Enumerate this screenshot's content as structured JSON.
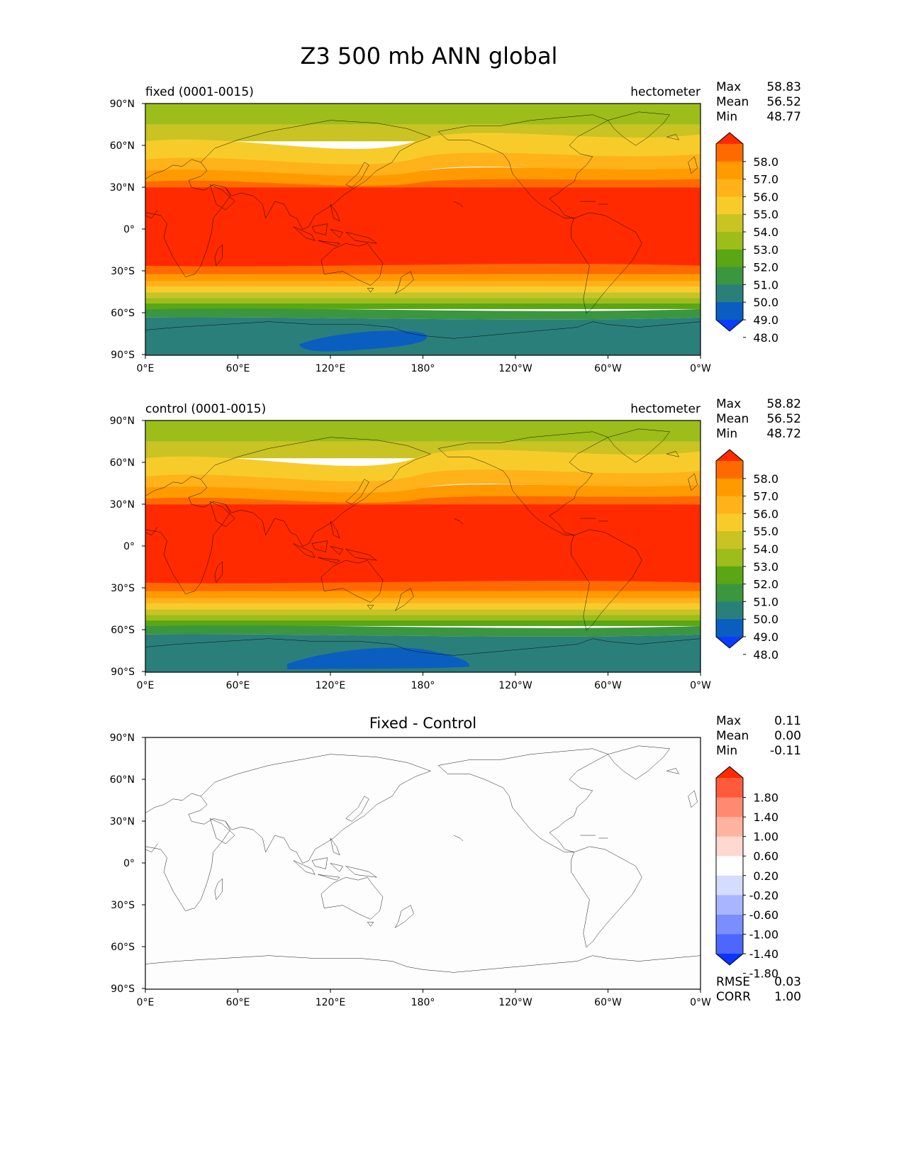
{
  "title": "Z3 500 mb ANN global",
  "axes": {
    "lat_ticks": [
      "90°N",
      "60°N",
      "30°N",
      "0°",
      "30°S",
      "60°S",
      "90°S"
    ],
    "lon_ticks": [
      "0°E",
      "60°E",
      "120°E",
      "180°",
      "120°W",
      "60°W",
      "0°W"
    ]
  },
  "panels": [
    {
      "label": "fixed (0001-0015)",
      "units": "hectometer",
      "stats": [
        {
          "name": "Max",
          "value": "58.83"
        },
        {
          "name": "Mean",
          "value": "56.52"
        },
        {
          "name": "Min",
          "value": "48.77"
        }
      ],
      "colorbar": {
        "labels": [
          "58.0",
          "57.0",
          "56.0",
          "55.0",
          "54.0",
          "53.0",
          "52.0",
          "51.0",
          "50.0",
          "49.0",
          "48.0"
        ],
        "colors": [
          "#ff2a00",
          "#ff6a00",
          "#ff9a00",
          "#ffb21a",
          "#f7cc2a",
          "#c9c323",
          "#9dbd1a",
          "#5aa614",
          "#3b9640",
          "#2b7f7a",
          "#0a5ec0",
          "#0a3cff"
        ]
      }
    },
    {
      "label": "control (0001-0015)",
      "units": "hectometer",
      "stats": [
        {
          "name": "Max",
          "value": "58.82"
        },
        {
          "name": "Mean",
          "value": "56.52"
        },
        {
          "name": "Min",
          "value": "48.72"
        }
      ],
      "colorbar": {
        "labels": [
          "58.0",
          "57.0",
          "56.0",
          "55.0",
          "54.0",
          "53.0",
          "52.0",
          "51.0",
          "50.0",
          "49.0",
          "48.0"
        ],
        "colors": [
          "#ff2a00",
          "#ff6a00",
          "#ff9a00",
          "#ffb21a",
          "#f7cc2a",
          "#c9c323",
          "#9dbd1a",
          "#5aa614",
          "#3b9640",
          "#2b7f7a",
          "#0a5ec0",
          "#0a3cff"
        ]
      }
    },
    {
      "label": "Fixed - Control",
      "units": "",
      "stats": [
        {
          "name": "Max",
          "value": "0.11"
        },
        {
          "name": "Mean",
          "value": "0.00"
        },
        {
          "name": "Min",
          "value": "-0.11"
        }
      ],
      "colorbar": {
        "labels": [
          "1.80",
          "1.40",
          "1.00",
          "0.60",
          "0.20",
          "-0.20",
          "-0.60",
          "-1.00",
          "-1.40",
          "-1.80"
        ],
        "colors": [
          "#ff2a00",
          "#ff5a3a",
          "#ff8a70",
          "#ffb3a0",
          "#ffd8d0",
          "#ffffff",
          "#d4dcff",
          "#a8b6ff",
          "#7a8eff",
          "#4c66ff",
          "#0a33ff"
        ]
      },
      "metrics": [
        {
          "name": "RMSE",
          "value": "0.03"
        },
        {
          "name": "CORR",
          "value": "1.00"
        }
      ]
    }
  ]
}
